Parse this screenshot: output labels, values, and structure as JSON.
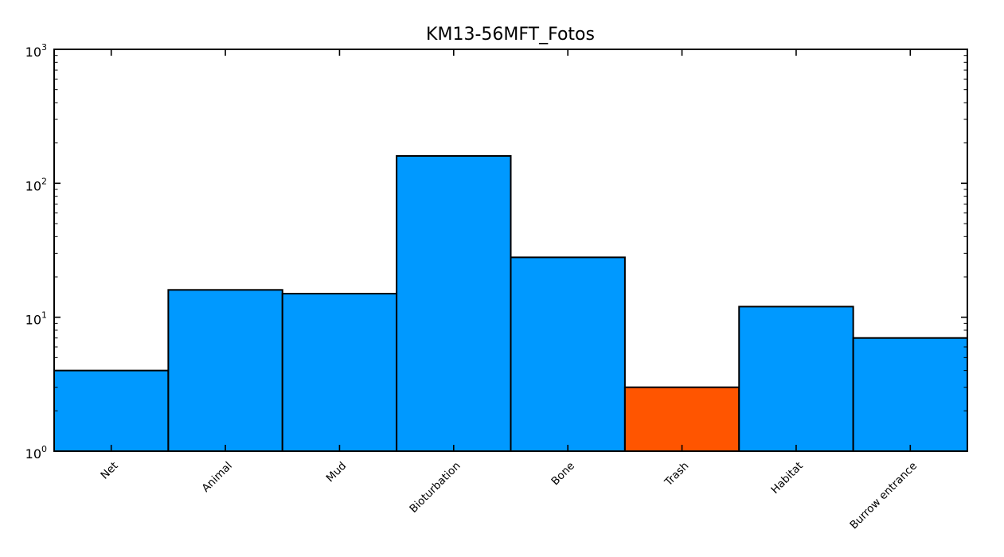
{
  "window": {
    "background_color": "#ffffff"
  },
  "chart_data": {
    "type": "bar",
    "title": "KM13-56MFT_Fotos",
    "categories": [
      "Net",
      "Animal",
      "Mud",
      "Bioturbation",
      "Bone",
      "Trash",
      "Habitat",
      "Burrow entrance"
    ],
    "values": [
      4,
      16,
      15,
      160,
      28,
      3,
      12,
      7
    ],
    "bar_colors": [
      "#0099FF",
      "#0099FF",
      "#0099FF",
      "#0099FF",
      "#0099FF",
      "#FF5500",
      "#0099FF",
      "#0099FF"
    ],
    "default_bar_color": "#0099FF",
    "highlight_bar_color": "#FF5500",
    "edge_color": "#000000",
    "xlabel": "",
    "ylabel": "",
    "yscale": "log",
    "ylim": [
      1,
      1000
    ],
    "y_tick_exponents": [
      0,
      1,
      2,
      3
    ],
    "y_tick_base": "10",
    "x_tick_rotation_deg": 45,
    "grid": false,
    "legend": null,
    "bars_contiguous": true
  }
}
